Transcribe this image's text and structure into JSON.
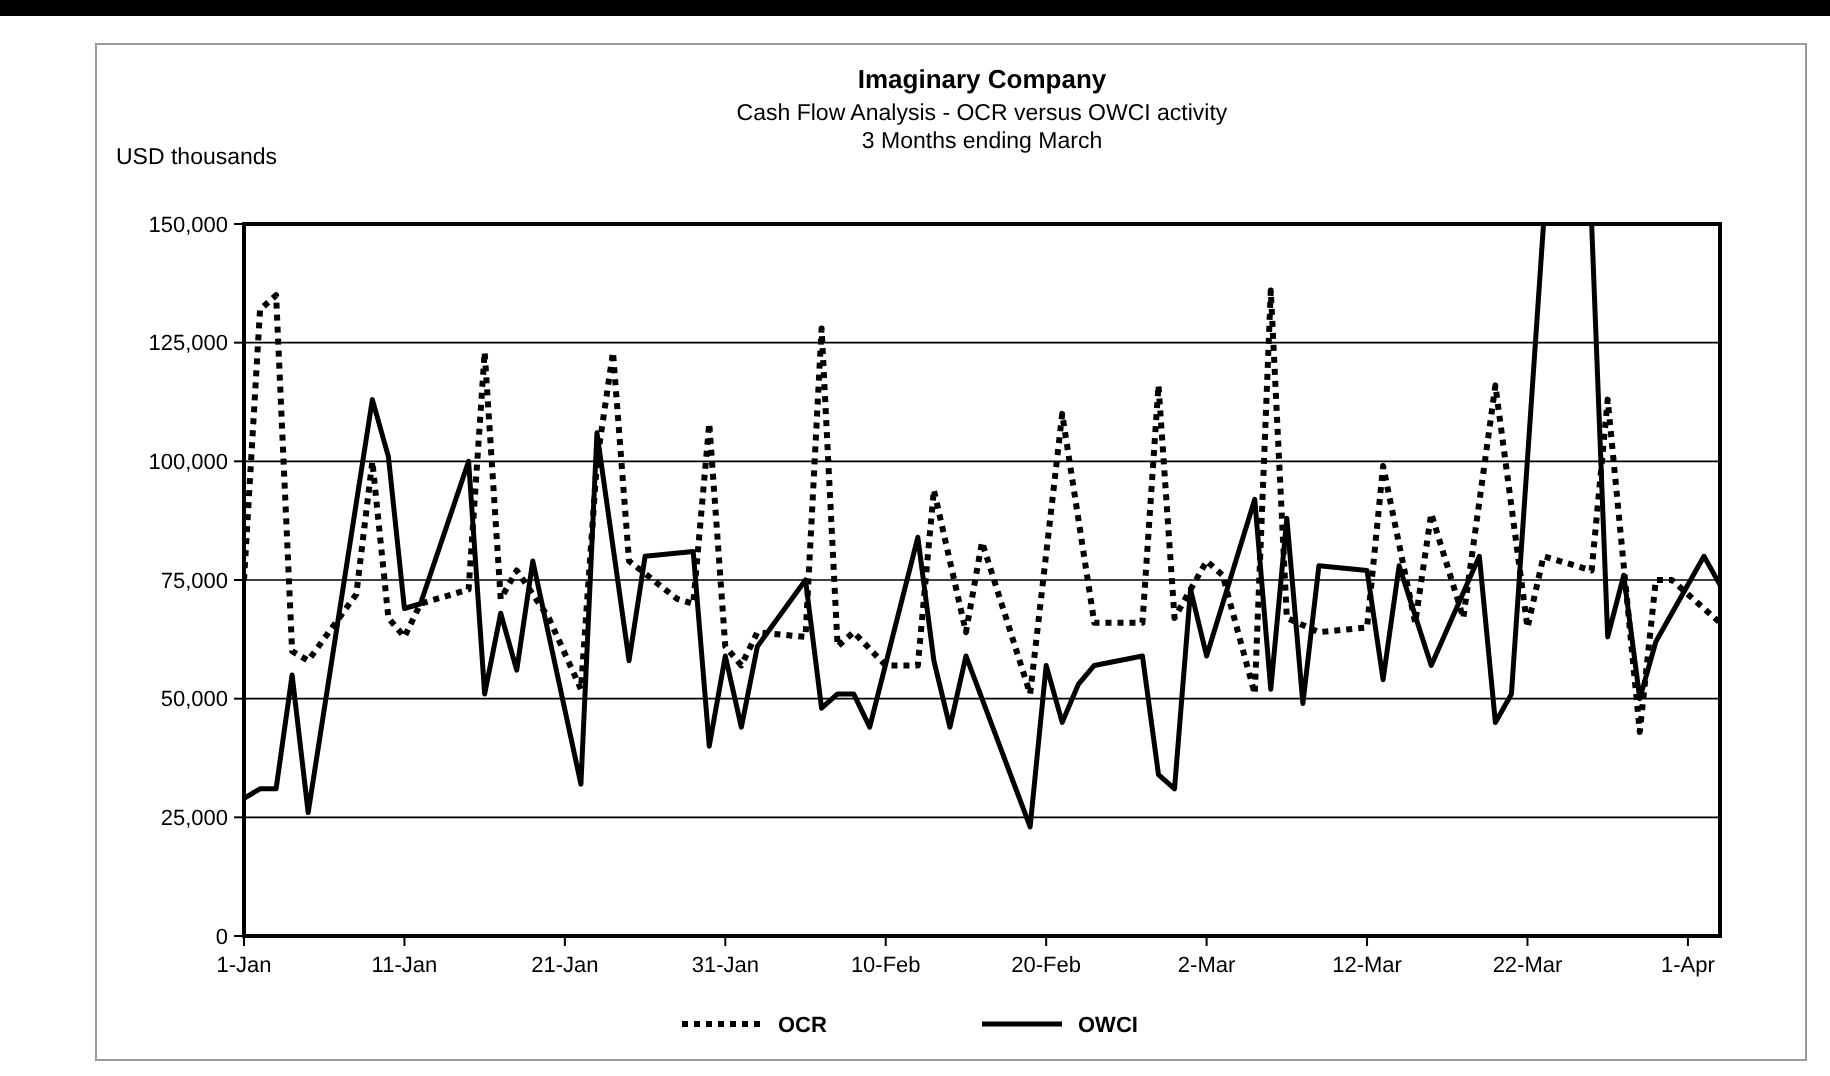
{
  "chart_data": {
    "type": "line",
    "title": "Imaginary Company",
    "subtitle": "Cash Flow Analysis - OCR versus OWCI activity\n3 Months ending March",
    "ylabel": "USD thousands",
    "xlim": [
      "--01-01",
      "--04-03"
    ],
    "xticks": [
      {
        "value": "--01-01",
        "label": "1-Jan"
      },
      {
        "value": "--01-11",
        "label": "11-Jan"
      },
      {
        "value": "--01-21",
        "label": "21-Jan"
      },
      {
        "value": "--01-31",
        "label": "31-Jan"
      },
      {
        "value": "--02-10",
        "label": "10-Feb"
      },
      {
        "value": "--02-20",
        "label": "20-Feb"
      },
      {
        "value": "--03-02",
        "label": "2-Mar"
      },
      {
        "value": "--03-12",
        "label": "12-Mar"
      },
      {
        "value": "--03-22",
        "label": "22-Mar"
      },
      {
        "value": "--04-01",
        "label": "1-Apr"
      }
    ],
    "ylim": [
      0,
      150000
    ],
    "yticks": [
      0,
      {
        "value": 25000,
        "label": "25,000"
      },
      {
        "value": 50000,
        "label": "50,000"
      },
      {
        "value": 75000,
        "label": "75,000"
      },
      {
        "value": 100000,
        "label": "100,000"
      },
      {
        "value": 125000,
        "label": "125,000"
      },
      {
        "value": 150000,
        "label": "150,000"
      }
    ],
    "grid": "y",
    "legend": "bottom",
    "marker": "none",
    "series": [
      {
        "name": "OCR",
        "color": "#000000",
        "line_style": "dotted",
        "x": [
          "--01-01",
          "--01-02",
          "--01-03",
          "--01-04",
          "--01-05",
          "--01-08",
          "--01-09",
          "--01-10",
          "--01-11",
          "--01-12",
          "--01-15",
          "--01-16",
          "--01-17",
          "--01-18",
          "--01-20",
          "--01-22",
          "--01-23",
          "--01-24",
          "--01-25",
          "--01-28",
          "--01-29",
          "--01-30",
          "--01-31",
          "--02-01",
          "--02-02",
          "--02-05",
          "--02-06",
          "--02-07",
          "--02-08",
          "--02-10",
          "--02-12",
          "--02-13",
          "--02-15",
          "--02-16",
          "--02-19",
          "--02-21",
          "--02-23",
          "--02-26",
          "--02-27",
          "--02-28",
          "--03-02",
          "--03-03",
          "--03-05",
          "--03-06",
          "--03-07",
          "--03-09",
          "--03-12",
          "--03-13",
          "--03-15",
          "--03-16",
          "--03-18",
          "--03-20",
          "--03-22",
          "--03-23",
          "--03-26",
          "--03-27",
          "--03-29",
          "--03-30",
          "--03-31",
          "--04-02",
          "--04-03"
        ],
        "values": [
          75000,
          132000,
          135000,
          60000,
          58000,
          72000,
          100000,
          67000,
          63000,
          70000,
          73000,
          123000,
          71000,
          77000,
          67000,
          52000,
          100000,
          123000,
          79000,
          71000,
          70000,
          108000,
          61000,
          57000,
          64000,
          63000,
          128000,
          61000,
          64000,
          57000,
          57000,
          94000,
          64000,
          83000,
          51000,
          110000,
          66000,
          66000,
          116000,
          67000,
          79000,
          76000,
          51000,
          136000,
          67000,
          64000,
          65000,
          99000,
          66000,
          89000,
          67000,
          116000,
          65000,
          80000,
          77000,
          113000,
          43000,
          75000,
          75000,
          69000,
          66000
        ]
      },
      {
        "name": "OWCI",
        "color": "#000000",
        "line_style": "solid",
        "x": [
          "--01-01",
          "--01-02",
          "--01-03",
          "--01-04",
          "--01-05",
          "--01-09",
          "--01-10",
          "--01-11",
          "--01-12",
          "--01-15",
          "--01-16",
          "--01-17",
          "--01-18",
          "--01-19",
          "--01-22",
          "--01-23",
          "--01-25",
          "--01-26",
          "--01-29",
          "--01-30",
          "--01-31",
          "--02-01",
          "--02-02",
          "--02-05",
          "--02-06",
          "--02-07",
          "--02-08",
          "--02-09",
          "--02-12",
          "--02-13",
          "--02-14",
          "--02-15",
          "--02-19",
          "--02-20",
          "--02-21",
          "--02-22",
          "--02-23",
          "--02-26",
          "--02-27",
          "--02-28",
          "--03-01",
          "--03-02",
          "--03-05",
          "--03-06",
          "--03-07",
          "--03-08",
          "--03-09",
          "--03-12",
          "--03-13",
          "--03-14",
          "--03-16",
          "--03-19",
          "--03-20",
          "--03-21",
          "--03-23",
          "--03-24",
          "--03-26",
          "--03-27",
          "--03-28",
          "--03-29",
          "--03-30",
          "--04-02",
          "--04-03"
        ],
        "values": [
          29000,
          31000,
          31000,
          55000,
          26000,
          113000,
          101000,
          69000,
          70000,
          100000,
          51000,
          68000,
          56000,
          79000,
          32000,
          106000,
          58000,
          80000,
          81000,
          40000,
          59000,
          44000,
          61000,
          75000,
          48000,
          51000,
          51000,
          44000,
          84000,
          58000,
          44000,
          59000,
          23000,
          57000,
          45000,
          53000,
          57000,
          59000,
          34000,
          31000,
          73000,
          59000,
          92000,
          52000,
          88000,
          49000,
          78000,
          77000,
          54000,
          78000,
          57000,
          80000,
          45000,
          51000,
          150000,
          null,
          150000,
          63000,
          76000,
          50000,
          62000,
          80000,
          74000
        ]
      }
    ]
  }
}
